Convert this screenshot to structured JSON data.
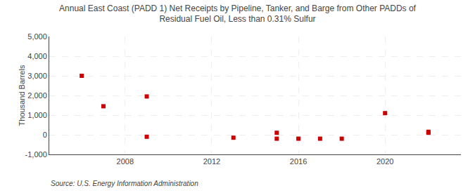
{
  "chart_data": {
    "type": "scatter",
    "title": "Annual East Coast (PADD 1) Net Receipts by Pipeline, Tanker, and Barge from Other PADDs of\nResidual Fuel Oil, Less than 0.31% Sulfur",
    "ylabel": "Thousand Barrels",
    "annotations": [
      "Source: U.S. Energy Information Administration"
    ],
    "x": [
      2006,
      2007,
      2009,
      2009,
      2013,
      2015,
      2015,
      2016,
      2017,
      2018,
      2020,
      2022,
      2022
    ],
    "values": [
      3000,
      1450,
      1950,
      -100,
      -150,
      100,
      -200,
      -200,
      -200,
      -200,
      1100,
      100,
      150
    ],
    "color": "#cc0000",
    "marker": "square",
    "xlim": [
      2004.5,
      2023.5
    ],
    "xticks": [
      2008,
      2012,
      2016,
      2020
    ],
    "ylim": [
      -1000,
      5000
    ],
    "yticks": [
      {
        "value": -1000,
        "label": "-1,000"
      },
      0,
      {
        "value": 1000,
        "label": "1,000"
      },
      {
        "value": 2000,
        "label": "2,000"
      },
      {
        "value": 3000,
        "label": "3,000"
      },
      {
        "value": 4000,
        "label": "4,000"
      },
      {
        "value": 5000,
        "label": "5,000"
      }
    ],
    "grid": true
  }
}
